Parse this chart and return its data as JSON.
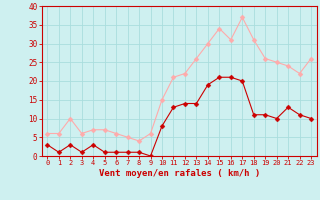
{
  "hours": [
    0,
    1,
    2,
    3,
    4,
    5,
    6,
    7,
    8,
    9,
    10,
    11,
    12,
    13,
    14,
    15,
    16,
    17,
    18,
    19,
    20,
    21,
    22,
    23
  ],
  "wind_mean": [
    3,
    1,
    3,
    1,
    3,
    1,
    1,
    1,
    1,
    0,
    8,
    13,
    14,
    14,
    19,
    21,
    21,
    20,
    11,
    11,
    10,
    13,
    11,
    10
  ],
  "wind_gust": [
    6,
    6,
    10,
    6,
    7,
    7,
    6,
    5,
    4,
    6,
    15,
    21,
    22,
    26,
    30,
    34,
    31,
    37,
    31,
    26,
    25,
    24,
    22,
    26
  ],
  "xlabel": "Vent moyen/en rafales ( km/h )",
  "ylim": [
    0,
    40
  ],
  "yticks": [
    0,
    5,
    10,
    15,
    20,
    25,
    30,
    35,
    40
  ],
  "bg_color": "#cef0f0",
  "grid_color": "#aadddd",
  "mean_color": "#cc0000",
  "gust_color": "#ffaaaa",
  "xlabel_color": "#cc0000",
  "tick_color": "#cc0000",
  "spine_color": "#cc0000",
  "markersize": 2.5,
  "linewidth": 0.8
}
